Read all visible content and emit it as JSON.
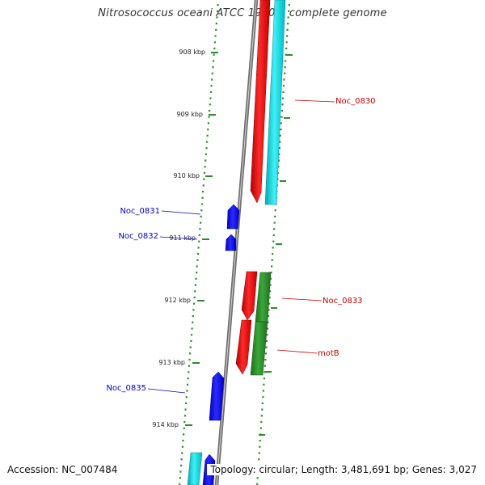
{
  "title": "Nitrosococcus oceani ATCC 19707, complete genome",
  "footer": {
    "accession": "Accession: NC_007484",
    "topology": "Topology: circular; Length: 3,481,691 bp; Genes: 3,027"
  },
  "colors": {
    "tick_color": "#2e8b2e",
    "backbone": "#808080",
    "forward_red": "#ff0000",
    "forward_cyan": "#00d8e0",
    "reverse_blue": "#0000ff",
    "forward_green": "#2e8b2e",
    "label_red": "#cc0000",
    "label_blue": "#0000cc"
  },
  "ruler": {
    "major_labels": [
      "908 kbp",
      "909 kbp",
      "910 kbp",
      "911 kbp",
      "912 kbp",
      "913 kbp",
      "914 kbp"
    ]
  },
  "genes": [
    {
      "id": "Noc_0830",
      "strand": "+",
      "color": "red"
    },
    {
      "id": "Noc_0830",
      "strand": "+",
      "color": "cyan"
    },
    {
      "id": "Noc_0831",
      "strand": "-",
      "color": "blue"
    },
    {
      "id": "Noc_0832",
      "strand": "-",
      "color": "blue"
    },
    {
      "id": "Noc_0833",
      "strand": "+",
      "color": "red"
    },
    {
      "id": "Noc_0833",
      "strand": "+",
      "color": "green"
    },
    {
      "id": "motB",
      "strand": "+",
      "color": "red"
    },
    {
      "id": "motB",
      "strand": "+",
      "color": "green"
    },
    {
      "id": "Noc_0835",
      "strand": "-",
      "color": "blue"
    }
  ],
  "gene_labels": {
    "noc_0830": "Noc_0830",
    "noc_0831": "Noc_0831",
    "noc_0832": "Noc_0832",
    "noc_0833": "Noc_0833",
    "motb": "motB",
    "noc_0835": "Noc_0835"
  }
}
